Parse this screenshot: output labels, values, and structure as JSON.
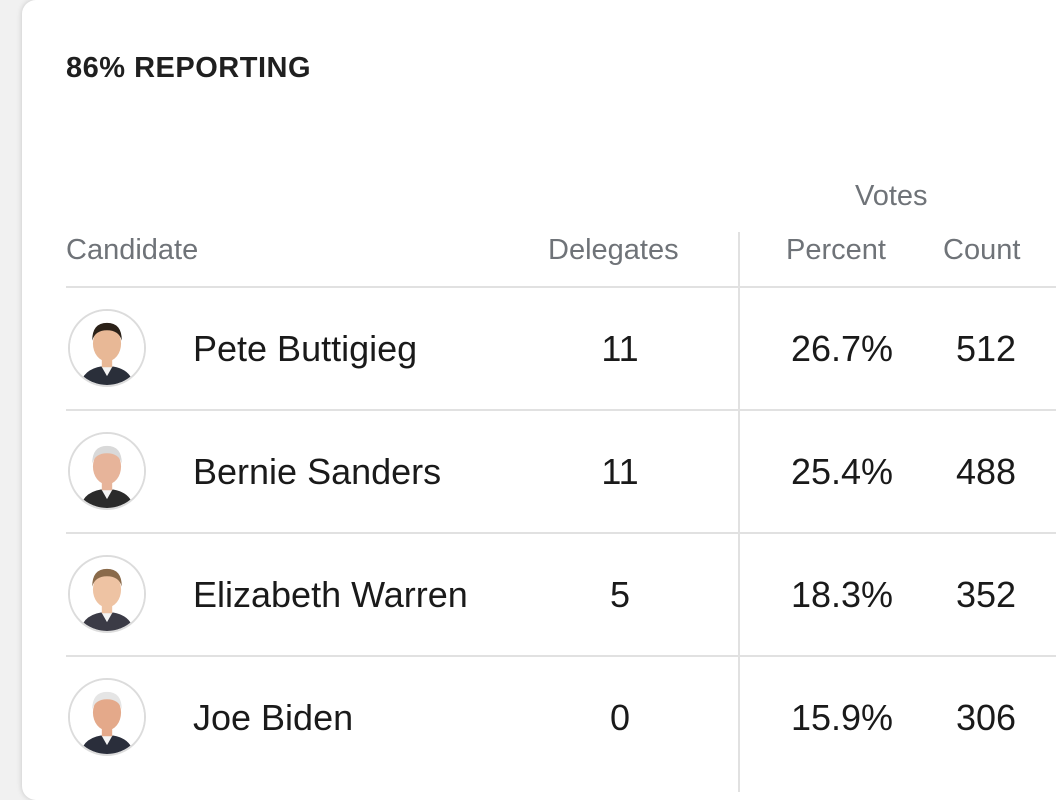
{
  "reporting_label": "86% REPORTING",
  "headers": {
    "votes_group": "Votes",
    "candidate": "Candidate",
    "delegates": "Delegates",
    "percent": "Percent",
    "count": "Count"
  },
  "rows": [
    {
      "name": "Pete Buttigieg",
      "delegates": "11",
      "percent": "26.7%",
      "count": "512",
      "hair": "#2b2118",
      "skin": "#e8b896",
      "suit": "#2a2f3a"
    },
    {
      "name": "Bernie Sanders",
      "delegates": "11",
      "percent": "25.4%",
      "count": "488",
      "hair": "#d9d9d9",
      "skin": "#e7b49a",
      "suit": "#2b2b2b"
    },
    {
      "name": "Elizabeth Warren",
      "delegates": "5",
      "percent": "18.3%",
      "count": "352",
      "hair": "#8a6a4a",
      "skin": "#eec3a3",
      "suit": "#3b3b46"
    },
    {
      "name": "Joe Biden",
      "delegates": "0",
      "percent": "15.9%",
      "count": "306",
      "hair": "#e5e5e5",
      "skin": "#e4a98a",
      "suit": "#2a2e3b"
    }
  ]
}
